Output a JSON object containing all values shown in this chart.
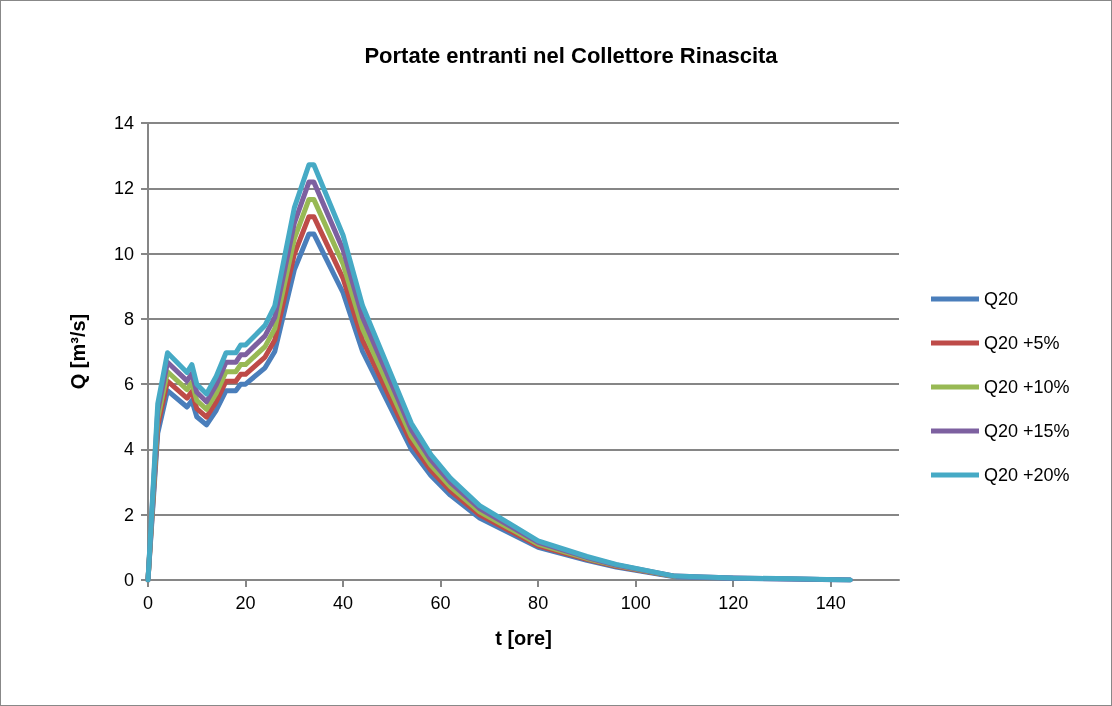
{
  "chart_data": {
    "type": "line",
    "title": "Portate entranti nel Collettore Rinascita",
    "xlabel": "t [ore]",
    "ylabel": "Q [m³/s]",
    "x": [
      0,
      2,
      4,
      8,
      9,
      10,
      12,
      14,
      16,
      18,
      19,
      20,
      24,
      26,
      30,
      33,
      34,
      40,
      44,
      48,
      54,
      58,
      62,
      68,
      80,
      90,
      96,
      108,
      120,
      132,
      144
    ],
    "series": [
      {
        "name": "Q20",
        "color": "#4a7ebb",
        "values": [
          0,
          4.5,
          5.8,
          5.3,
          5.5,
          5.0,
          4.75,
          5.2,
          5.8,
          5.8,
          6.0,
          6.0,
          6.5,
          7.0,
          9.5,
          10.6,
          10.6,
          8.8,
          7.0,
          5.8,
          4.0,
          3.2,
          2.6,
          1.9,
          1.0,
          0.6,
          0.4,
          0.1,
          0.05,
          0.03,
          0
        ]
      },
      {
        "name": "Q20 +5%",
        "color": "#be4b48",
        "values": [
          0,
          4.73,
          6.09,
          5.57,
          5.78,
          5.25,
          4.99,
          5.46,
          6.09,
          6.09,
          6.3,
          6.3,
          6.83,
          7.35,
          9.98,
          11.13,
          11.13,
          9.24,
          7.35,
          6.09,
          4.2,
          3.36,
          2.73,
          2.0,
          1.05,
          0.63,
          0.42,
          0.11,
          null,
          null,
          null
        ]
      },
      {
        "name": "Q20 +10%",
        "color": "#98b954",
        "values": [
          0,
          4.95,
          6.38,
          5.83,
          6.05,
          5.5,
          5.23,
          5.72,
          6.38,
          6.38,
          6.6,
          6.6,
          7.15,
          7.7,
          10.45,
          11.66,
          11.66,
          9.68,
          7.7,
          6.38,
          4.4,
          3.52,
          2.86,
          2.09,
          1.1,
          0.66,
          0.44,
          0.11,
          null,
          null,
          null
        ]
      },
      {
        "name": "Q20 +15%",
        "color": "#7d60a0",
        "values": [
          0,
          5.18,
          6.67,
          6.1,
          6.33,
          5.75,
          5.46,
          5.98,
          6.67,
          6.67,
          6.9,
          6.9,
          7.48,
          8.05,
          10.93,
          12.19,
          12.19,
          10.12,
          8.05,
          6.67,
          4.6,
          3.68,
          2.99,
          2.19,
          1.15,
          0.69,
          0.46,
          0.12,
          0.06,
          0.03,
          0
        ]
      },
      {
        "name": "Q20 +20%",
        "color": "#46aac5",
        "values": [
          0,
          5.4,
          6.96,
          6.36,
          6.6,
          6.0,
          5.7,
          6.24,
          6.96,
          6.96,
          7.2,
          7.2,
          7.8,
          8.4,
          11.4,
          12.72,
          12.72,
          10.56,
          8.4,
          6.96,
          4.8,
          3.84,
          3.12,
          2.28,
          1.2,
          0.72,
          0.48,
          0.12,
          0.06,
          0.04,
          0
        ]
      }
    ],
    "xlim": [
      0,
      154
    ],
    "xticks": [
      0,
      20,
      40,
      60,
      80,
      100,
      120,
      140
    ],
    "ylim": [
      0,
      14
    ],
    "yticks": [
      0,
      2,
      4,
      6,
      8,
      10,
      12,
      14
    ],
    "grid": "y",
    "legend": "right",
    "marker": "none",
    "line_style": "solid"
  }
}
